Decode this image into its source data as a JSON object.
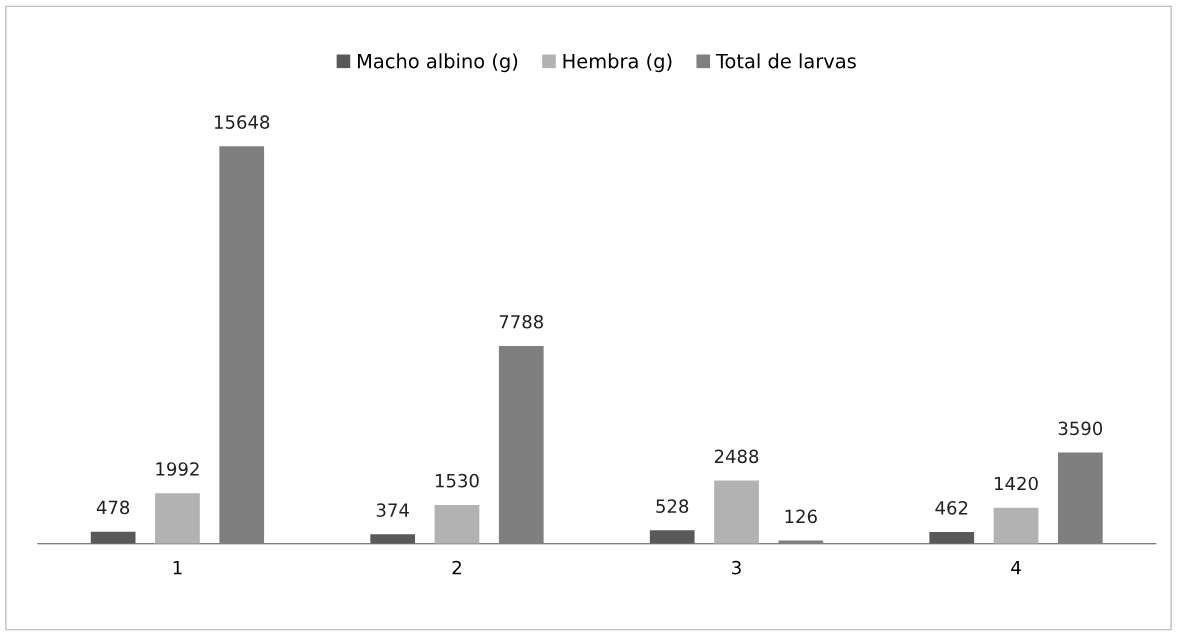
{
  "chart_data": {
    "type": "bar",
    "categories": [
      "1",
      "2",
      "3",
      "4"
    ],
    "series": [
      {
        "name": "Macho albino (g)",
        "color": "#595959",
        "values": [
          478,
          374,
          528,
          462
        ]
      },
      {
        "name": "Hembra (g)",
        "color": "#b2b2b2",
        "values": [
          1992,
          1530,
          2488,
          1420
        ]
      },
      {
        "name": "Total de larvas",
        "color": "#7f7f7f",
        "values": [
          15648,
          7788,
          126,
          3590
        ]
      }
    ],
    "data_labels": true,
    "legend": "top",
    "grid": false
  }
}
